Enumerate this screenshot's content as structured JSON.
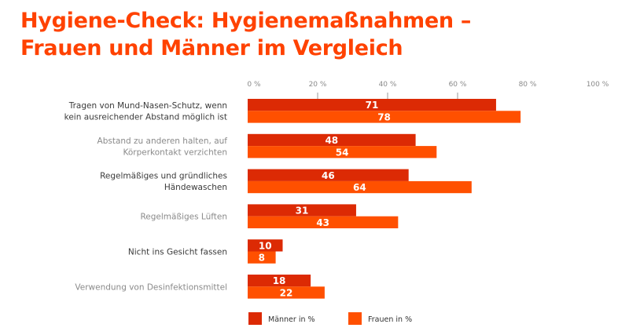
{
  "title": {
    "line1": "Hygiene-Check: Hygienemaßnahmen –",
    "line2": "Frauen und Männer im Vergleich"
  },
  "colors": {
    "title": "#ff4200",
    "men": "#dc2a04",
    "women": "#ff5000",
    "label_dark": "#3a3a3a",
    "label_light": "#8a8a8a",
    "tick": "#9a9a9a"
  },
  "chart_data": {
    "type": "bar",
    "orientation": "horizontal",
    "title": "Hygiene-Check: Hygienemaßnahmen – Frauen und Männer im Vergleich",
    "xlabel": "",
    "ylabel": "",
    "xlim": [
      0,
      100
    ],
    "x_ticks": [
      "0 %",
      "20 %",
      "40 %",
      "60 %",
      "80 %",
      "100 %"
    ],
    "x_tick_values": [
      0,
      20,
      40,
      60,
      80,
      100
    ],
    "axis_position": "top",
    "grid": false,
    "legend_position": "bottom",
    "categories": [
      [
        "Tragen von Mund-Nasen-Schutz, wenn",
        "kein ausreichender Abstand möglich ist"
      ],
      [
        "Abstand zu anderen halten, auf",
        "Körperkontakt verzichten"
      ],
      [
        "Regelmäßiges und gründliches",
        "Händewaschen"
      ],
      [
        "Regelmäßiges Lüften"
      ],
      [
        "Nicht ins Gesicht fassen"
      ],
      [
        "Verwendung von Desinfektionsmittel"
      ]
    ],
    "category_label_style": [
      "dark",
      "light",
      "dark",
      "light",
      "dark",
      "light"
    ],
    "series": [
      {
        "name": "Männer in %",
        "key": "men",
        "values": [
          71,
          48,
          46,
          31,
          10,
          18
        ]
      },
      {
        "name": "Frauen in %",
        "key": "women",
        "values": [
          78,
          54,
          64,
          43,
          8,
          22
        ]
      }
    ]
  }
}
